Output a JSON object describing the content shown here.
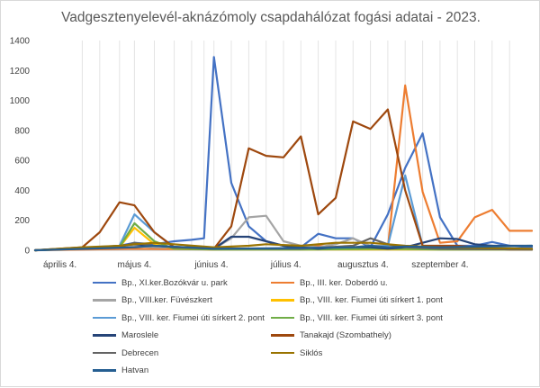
{
  "chart_data": {
    "type": "line",
    "title": "Vadgesztenyelevél-aknázómoly csapdahálózat fogási adatai - 2023.",
    "xlabel": "",
    "ylabel": "",
    "ylim": [
      0,
      1400
    ],
    "yticks": [
      0,
      200,
      400,
      600,
      800,
      1000,
      1200,
      1400
    ],
    "xlim": [
      "2023-03-25",
      "2023-10-11"
    ],
    "xtick_dates": [
      "2023-04-04",
      "2023-05-04",
      "2023-06-04",
      "2023-07-04",
      "2023-08-04",
      "2023-09-04"
    ],
    "xtick_labels": [
      "április 4.",
      "május 4.",
      "június 4.",
      "július 4.",
      "augusztus 4.",
      "szeptember 4."
    ],
    "grid": "vertical",
    "legend": "bottom",
    "series": [
      {
        "name": "Bp., XI.ker.Bozókvár u. park",
        "color": "#4472c4",
        "x": [
          "2023-03-25",
          "2023-04-20",
          "2023-04-28",
          "2023-05-04",
          "2023-05-12",
          "2023-05-20",
          "2023-05-27",
          "2023-06-01",
          "2023-06-05",
          "2023-06-12",
          "2023-06-19",
          "2023-06-26",
          "2023-07-03",
          "2023-07-10",
          "2023-07-17",
          "2023-07-24",
          "2023-07-31",
          "2023-08-07",
          "2023-08-14",
          "2023-08-21",
          "2023-08-28",
          "2023-09-04",
          "2023-09-11",
          "2023-09-18",
          "2023-09-25",
          "2023-10-02",
          "2023-10-11"
        ],
        "y": [
          0,
          20,
          30,
          50,
          40,
          60,
          70,
          80,
          1290,
          450,
          160,
          60,
          30,
          20,
          110,
          80,
          80,
          20,
          240,
          550,
          780,
          220,
          30,
          30,
          55,
          30,
          20
        ]
      },
      {
        "name": "Bp., III. ker. Doberdó u.",
        "color": "#ed7d31",
        "x": [
          "2023-03-25",
          "2023-05-04",
          "2023-06-05",
          "2023-06-26",
          "2023-07-10",
          "2023-07-17",
          "2023-07-24",
          "2023-07-31",
          "2023-08-07",
          "2023-08-14",
          "2023-08-21",
          "2023-08-28",
          "2023-09-04",
          "2023-09-11",
          "2023-09-18",
          "2023-09-25",
          "2023-10-02",
          "2023-10-11"
        ],
        "y": [
          0,
          10,
          5,
          10,
          10,
          30,
          20,
          20,
          30,
          15,
          1100,
          390,
          50,
          60,
          220,
          270,
          130,
          130
        ]
      },
      {
        "name": "Bp., VIII.ker. Füvészkert",
        "color": "#a5a5a5",
        "x": [
          "2023-03-25",
          "2023-05-04",
          "2023-05-12",
          "2023-06-05",
          "2023-06-12",
          "2023-06-19",
          "2023-06-26",
          "2023-07-03",
          "2023-07-10",
          "2023-07-17",
          "2023-07-24",
          "2023-07-31",
          "2023-08-07",
          "2023-08-14",
          "2023-08-21",
          "2023-08-28",
          "2023-09-04",
          "2023-10-11"
        ],
        "y": [
          0,
          30,
          20,
          10,
          80,
          220,
          230,
          60,
          30,
          20,
          40,
          80,
          30,
          30,
          20,
          15,
          10,
          10
        ]
      },
      {
        "name": "Bp., VIII. ker. Fiumei úti sírkert 1. pont",
        "color": "#ffc000",
        "x": [
          "2023-03-25",
          "2023-04-28",
          "2023-05-04",
          "2023-05-12",
          "2023-05-20",
          "2023-06-05",
          "2023-07-10",
          "2023-08-14",
          "2023-09-04",
          "2023-10-11"
        ],
        "y": [
          0,
          20,
          150,
          40,
          10,
          5,
          5,
          5,
          5,
          5
        ]
      },
      {
        "name": "Bp., VIII. ker. Fiumei úti sírkert 2. pont",
        "color": "#5b9bd5",
        "x": [
          "2023-03-25",
          "2023-04-28",
          "2023-05-04",
          "2023-05-12",
          "2023-05-20",
          "2023-06-05",
          "2023-07-10",
          "2023-07-31",
          "2023-08-07",
          "2023-08-14",
          "2023-08-21",
          "2023-08-28",
          "2023-09-04",
          "2023-10-11"
        ],
        "y": [
          0,
          30,
          240,
          120,
          20,
          10,
          10,
          10,
          20,
          30,
          500,
          30,
          15,
          10
        ]
      },
      {
        "name": "Bp., VIII. ker. Fiumei úti sírkert 3. pont",
        "color": "#70ad47",
        "x": [
          "2023-03-25",
          "2023-04-28",
          "2023-05-04",
          "2023-05-12",
          "2023-05-20",
          "2023-06-05",
          "2023-07-10",
          "2023-08-14",
          "2023-09-04",
          "2023-10-11"
        ],
        "y": [
          0,
          20,
          180,
          60,
          10,
          5,
          5,
          10,
          5,
          5
        ]
      },
      {
        "name": "Maroslele",
        "color": "#264478",
        "x": [
          "2023-03-25",
          "2023-04-20",
          "2023-04-28",
          "2023-05-04",
          "2023-05-12",
          "2023-05-20",
          "2023-05-27",
          "2023-06-05",
          "2023-06-12",
          "2023-06-19",
          "2023-06-26",
          "2023-07-03",
          "2023-07-10",
          "2023-07-17",
          "2023-07-24",
          "2023-07-31",
          "2023-08-07",
          "2023-08-14",
          "2023-08-21",
          "2023-08-28",
          "2023-09-04",
          "2023-09-11",
          "2023-09-18",
          "2023-09-25",
          "2023-10-02",
          "2023-10-11"
        ],
        "y": [
          0,
          20,
          30,
          40,
          30,
          20,
          20,
          10,
          90,
          90,
          60,
          30,
          20,
          10,
          20,
          20,
          20,
          10,
          20,
          50,
          80,
          75,
          40,
          30,
          30,
          30
        ]
      },
      {
        "name": "Tanakajd (Szombathely)",
        "color": "#9e480e",
        "x": [
          "2023-03-25",
          "2023-04-13",
          "2023-04-20",
          "2023-04-28",
          "2023-05-04",
          "2023-05-12",
          "2023-05-20",
          "2023-06-05",
          "2023-06-12",
          "2023-06-19",
          "2023-06-26",
          "2023-07-03",
          "2023-07-10",
          "2023-07-17",
          "2023-07-24",
          "2023-07-31",
          "2023-08-07",
          "2023-08-14",
          "2023-08-21",
          "2023-08-28",
          "2023-09-04",
          "2023-09-11",
          "2023-09-18",
          "2023-09-25",
          "2023-10-02",
          "2023-10-11"
        ],
        "y": [
          0,
          20,
          120,
          320,
          300,
          120,
          20,
          10,
          160,
          680,
          630,
          620,
          760,
          240,
          350,
          860,
          810,
          940,
          400,
          30,
          30,
          30,
          20,
          10,
          5,
          5
        ]
      },
      {
        "name": "Debrecen",
        "color": "#636363",
        "x": [
          "2023-03-25",
          "2023-04-28",
          "2023-05-04",
          "2023-05-12",
          "2023-06-05",
          "2023-07-10",
          "2023-07-31",
          "2023-08-07",
          "2023-08-14",
          "2023-08-21",
          "2023-08-28",
          "2023-09-04",
          "2023-10-11"
        ],
        "y": [
          0,
          20,
          50,
          30,
          10,
          10,
          30,
          80,
          40,
          20,
          15,
          10,
          5
        ]
      },
      {
        "name": "Siklós",
        "color": "#997300",
        "x": [
          "2023-03-25",
          "2023-04-13",
          "2023-04-28",
          "2023-05-04",
          "2023-05-12",
          "2023-06-05",
          "2023-06-19",
          "2023-06-26",
          "2023-07-10",
          "2023-07-24",
          "2023-08-07",
          "2023-08-14",
          "2023-08-21",
          "2023-09-04",
          "2023-10-11"
        ],
        "y": [
          0,
          20,
          30,
          40,
          50,
          20,
          30,
          40,
          30,
          50,
          50,
          40,
          30,
          20,
          10
        ]
      },
      {
        "name": "Hatvan",
        "color": "#255e91",
        "x": [
          "2023-03-25",
          "2023-05-04",
          "2023-05-12",
          "2023-06-05",
          "2023-07-10",
          "2023-07-31",
          "2023-08-07",
          "2023-08-14",
          "2023-08-21",
          "2023-09-04",
          "2023-10-11"
        ],
        "y": [
          0,
          20,
          30,
          10,
          15,
          20,
          30,
          20,
          25,
          20,
          30
        ]
      }
    ]
  }
}
